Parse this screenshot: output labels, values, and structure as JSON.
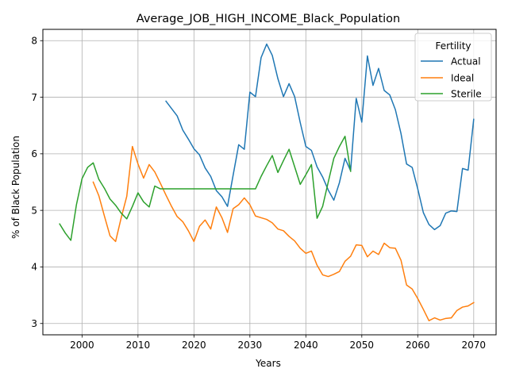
{
  "chart_data": {
    "type": "line",
    "title": "Average_JOB_HIGH_INCOME_Black_Population",
    "xlabel": "Years",
    "ylabel": "% of Black Population",
    "xlim": [
      1993,
      2074
    ],
    "ylim": [
      2.8,
      8.2
    ],
    "xticks": [
      2000,
      2010,
      2020,
      2030,
      2040,
      2050,
      2060,
      2070
    ],
    "yticks": [
      3,
      4,
      5,
      6,
      7,
      8
    ],
    "grid": true,
    "legend": {
      "title": "Fertility",
      "placement": "upper right"
    },
    "series": [
      {
        "name": "Actual",
        "color": "#1f77b4",
        "x": [
          2015,
          2016,
          2017,
          2018,
          2019,
          2020,
          2021,
          2022,
          2023,
          2024,
          2025,
          2026,
          2027,
          2028,
          2029,
          2030,
          2031,
          2032,
          2033,
          2034,
          2035,
          2036,
          2037,
          2038,
          2039,
          2040,
          2041,
          2042,
          2043,
          2044,
          2045,
          2046,
          2047,
          2048,
          2049,
          2050,
          2051,
          2052,
          2053,
          2054,
          2055,
          2056,
          2057,
          2058,
          2059,
          2060,
          2061,
          2062,
          2063,
          2064,
          2065,
          2066,
          2067,
          2068,
          2069,
          2070
        ],
        "y": [
          6.93,
          6.8,
          6.67,
          6.42,
          6.26,
          6.09,
          5.98,
          5.75,
          5.6,
          5.35,
          5.24,
          5.07,
          5.62,
          6.16,
          6.08,
          7.09,
          7.01,
          7.7,
          7.94,
          7.74,
          7.33,
          7.01,
          7.24,
          7.01,
          6.55,
          6.13,
          6.06,
          5.77,
          5.59,
          5.36,
          5.18,
          5.49,
          5.92,
          5.7,
          6.98,
          6.56,
          7.73,
          7.21,
          7.51,
          7.12,
          7.04,
          6.78,
          6.36,
          5.82,
          5.76,
          5.38,
          4.96,
          4.75,
          4.66,
          4.73,
          4.95,
          4.99,
          4.98,
          5.74,
          5.71,
          6.61
        ]
      },
      {
        "name": "Ideal",
        "color": "#ff7f0e",
        "x": [
          2002,
          2003,
          2004,
          2005,
          2006,
          2007,
          2008,
          2009,
          2010,
          2011,
          2012,
          2013,
          2014,
          2015,
          2016,
          2017,
          2018,
          2019,
          2020,
          2021,
          2022,
          2023,
          2024,
          2025,
          2026,
          2027,
          2028,
          2029,
          2030,
          2031,
          2032,
          2033,
          2034,
          2035,
          2036,
          2037,
          2038,
          2039,
          2040,
          2041,
          2042,
          2043,
          2044,
          2045,
          2046,
          2047,
          2048,
          2049,
          2050,
          2051,
          2052,
          2053,
          2054,
          2055,
          2056,
          2057,
          2058,
          2059,
          2060,
          2061,
          2062,
          2063,
          2064,
          2065,
          2066,
          2067,
          2068,
          2069,
          2070
        ],
        "y": [
          5.5,
          5.26,
          4.9,
          4.55,
          4.45,
          4.87,
          5.25,
          6.13,
          5.82,
          5.57,
          5.81,
          5.68,
          5.48,
          5.27,
          5.07,
          4.89,
          4.8,
          4.64,
          4.45,
          4.72,
          4.83,
          4.67,
          5.06,
          4.87,
          4.61,
          5.03,
          5.1,
          5.22,
          5.1,
          4.9,
          4.87,
          4.84,
          4.78,
          4.67,
          4.64,
          4.54,
          4.46,
          4.33,
          4.24,
          4.28,
          4.03,
          3.86,
          3.83,
          3.87,
          3.92,
          4.1,
          4.19,
          4.39,
          4.38,
          4.18,
          4.28,
          4.22,
          4.42,
          4.34,
          4.33,
          4.12,
          3.68,
          3.61,
          3.44,
          3.25,
          3.05,
          3.1,
          3.06,
          3.09,
          3.1,
          3.23,
          3.29,
          3.31,
          3.37
        ]
      },
      {
        "name": "Sterile",
        "color": "#2ca02c",
        "x": [
          1996,
          1997,
          1998,
          1999,
          2000,
          2001,
          2002,
          2003,
          2004,
          2005,
          2006,
          2007,
          2008,
          2009,
          2010,
          2011,
          2012,
          2013,
          2014,
          2015,
          2016,
          2017,
          2018,
          2019,
          2020,
          2021,
          2022,
          2023,
          2024,
          2025,
          2026,
          2027,
          2028,
          2029,
          2030,
          2031,
          2032,
          2033,
          2034,
          2035,
          2036,
          2037,
          2038,
          2039,
          2040,
          2041,
          2042,
          2043,
          2044,
          2045,
          2046,
          2047,
          2048
        ],
        "y": [
          4.76,
          4.6,
          4.47,
          5.1,
          5.56,
          5.76,
          5.84,
          5.55,
          5.39,
          5.2,
          5.09,
          4.95,
          4.85,
          5.07,
          5.31,
          5.15,
          5.06,
          5.43,
          5.38,
          5.38,
          5.38,
          5.38,
          5.38,
          5.38,
          5.38,
          5.38,
          5.38,
          5.38,
          5.38,
          5.38,
          5.38,
          5.38,
          5.38,
          5.38,
          5.38,
          5.38,
          5.6,
          5.79,
          5.97,
          5.67,
          5.88,
          6.08,
          5.77,
          5.46,
          5.63,
          5.81,
          4.86,
          5.07,
          5.5,
          5.92,
          6.13,
          6.31,
          5.69
        ]
      }
    ]
  }
}
